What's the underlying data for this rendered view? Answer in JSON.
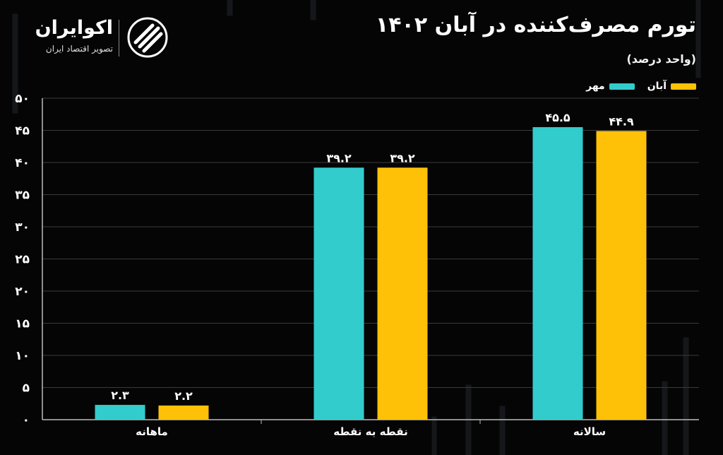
{
  "header": {
    "title": "تورم مصرف‌کننده در آبان ۱۴۰۲",
    "subtitle": "(واحد درصد)"
  },
  "brand": {
    "name": "اکوایران",
    "tagline": "تصویر اقتصاد ایران",
    "logo_icon": "ecoiran-logo-icon"
  },
  "legend": {
    "aban_label": "آبان",
    "mehr_label": "مهر"
  },
  "colors": {
    "background": "#050506",
    "mehr": "#33cccc",
    "aban": "#ffc107",
    "grid": "#3a3a3a"
  },
  "chart_data": {
    "type": "bar",
    "title": "تورم مصرف‌کننده در آبان ۱۴۰۲",
    "subtitle": "(واحد درصد)",
    "categories": [
      "ماهانه",
      "نقطه به نقطه",
      "سالانه"
    ],
    "series": [
      {
        "name": "مهر",
        "values": [
          2.3,
          39.2,
          45.5
        ],
        "labels": [
          "۲.۳",
          "۳۹.۲",
          "۴۵.۵"
        ],
        "color": "#33cccc"
      },
      {
        "name": "آبان",
        "values": [
          2.2,
          39.2,
          44.9
        ],
        "labels": [
          "۲.۲",
          "۳۹.۲",
          "۴۴.۹"
        ],
        "color": "#ffc107"
      }
    ],
    "ylim": [
      0,
      50
    ],
    "yticks": [
      0,
      5,
      10,
      15,
      20,
      25,
      30,
      35,
      40,
      45,
      50
    ],
    "ytick_labels": [
      "۰",
      "۵",
      "۱۰",
      "۱۵",
      "۲۰",
      "۲۵",
      "۳۰",
      "۳۵",
      "۴۰",
      "۴۵",
      "۵۰"
    ],
    "grid": true,
    "legend_position": "top-right",
    "xlabel": "",
    "ylabel": ""
  }
}
